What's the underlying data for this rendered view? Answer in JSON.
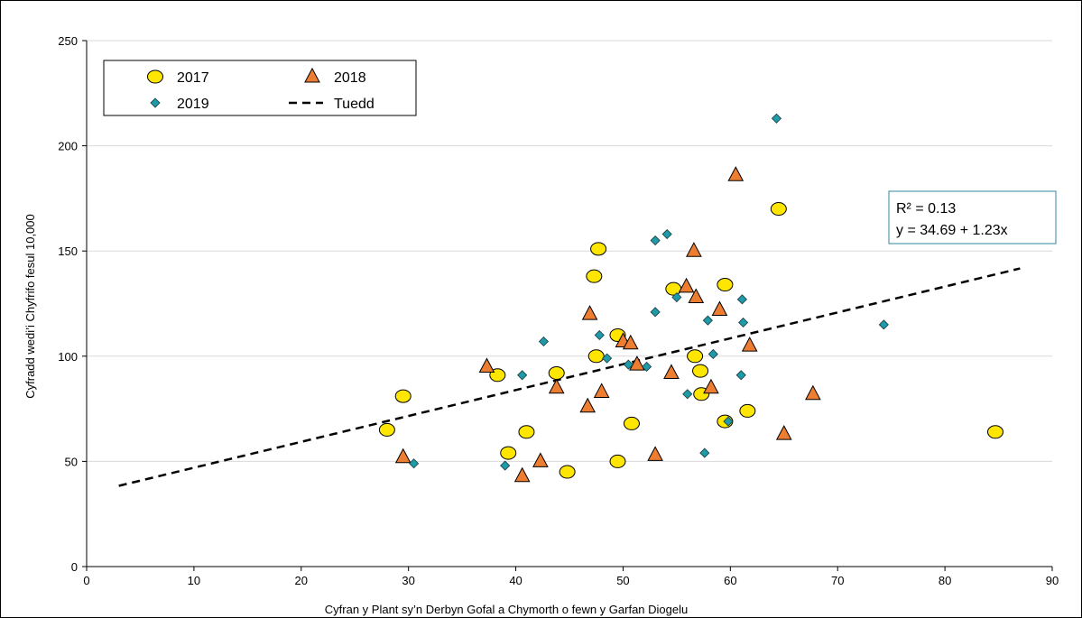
{
  "chart_data": {
    "type": "scatter",
    "xlabel": "Cyfran y Plant sy’n Derbyn Gofal a Chymorth o fewn y Garfan Diogelu",
    "ylabel": "Cyfradd wedi’i Chyfrifo fesul 10,000",
    "xlim": [
      0,
      90
    ],
    "ylim": [
      0,
      250
    ],
    "x_ticks": [
      "0",
      "10",
      "20",
      "30",
      "40",
      "50",
      "60",
      "70",
      "80",
      "90"
    ],
    "y_ticks": [
      "0",
      "50",
      "100",
      "150",
      "200",
      "250"
    ],
    "grid": "horizontal",
    "legend_position": "top-left",
    "series": [
      {
        "name": "2017",
        "marker": "circle",
        "color": "#ffe600",
        "points": [
          [
            28.0,
            65
          ],
          [
            29.5,
            81
          ],
          [
            38.3,
            91
          ],
          [
            39.3,
            54
          ],
          [
            41.0,
            64
          ],
          [
            43.8,
            92
          ],
          [
            44.8,
            45
          ],
          [
            47.3,
            138
          ],
          [
            47.5,
            100
          ],
          [
            47.7,
            151
          ],
          [
            49.5,
            110
          ],
          [
            49.5,
            50
          ],
          [
            50.8,
            68
          ],
          [
            54.7,
            132
          ],
          [
            56.7,
            100
          ],
          [
            57.2,
            93
          ],
          [
            57.3,
            82
          ],
          [
            59.5,
            134
          ],
          [
            59.5,
            69
          ],
          [
            61.6,
            74
          ],
          [
            64.5,
            170
          ],
          [
            84.7,
            64
          ]
        ]
      },
      {
        "name": "2018",
        "marker": "triangle",
        "color": "#ed7d31",
        "points": [
          [
            29.5,
            52
          ],
          [
            37.3,
            95
          ],
          [
            40.6,
            43
          ],
          [
            42.3,
            50
          ],
          [
            43.8,
            85
          ],
          [
            46.7,
            76
          ],
          [
            46.9,
            120
          ],
          [
            48.0,
            83
          ],
          [
            50.0,
            107
          ],
          [
            50.7,
            106
          ],
          [
            51.3,
            96
          ],
          [
            53.0,
            53
          ],
          [
            54.5,
            92
          ],
          [
            55.9,
            133
          ],
          [
            56.6,
            150
          ],
          [
            56.8,
            128
          ],
          [
            58.2,
            85
          ],
          [
            59.0,
            122
          ],
          [
            60.5,
            186
          ],
          [
            61.8,
            105
          ],
          [
            65.0,
            63
          ],
          [
            67.7,
            82
          ]
        ]
      },
      {
        "name": "2019",
        "marker": "diamond",
        "color": "#1f9aa8",
        "points": [
          [
            30.5,
            49
          ],
          [
            39.0,
            48
          ],
          [
            40.6,
            91
          ],
          [
            42.6,
            107
          ],
          [
            47.8,
            110
          ],
          [
            48.5,
            99
          ],
          [
            50.5,
            96
          ],
          [
            52.2,
            95
          ],
          [
            53.0,
            121
          ],
          [
            53.0,
            155
          ],
          [
            54.1,
            158
          ],
          [
            55.0,
            128
          ],
          [
            56.0,
            82
          ],
          [
            57.6,
            54
          ],
          [
            57.9,
            117
          ],
          [
            58.4,
            101
          ],
          [
            59.8,
            69
          ],
          [
            61.0,
            91
          ],
          [
            61.1,
            127
          ],
          [
            61.2,
            116
          ],
          [
            64.3,
            213
          ],
          [
            74.3,
            115
          ]
        ]
      }
    ],
    "trendline": {
      "name": "Tuedd",
      "style": "dashed",
      "intercept": 34.69,
      "slope": 1.23,
      "x_range": [
        3,
        87
      ]
    },
    "annotation": {
      "r2_text": "R² = 0.13",
      "equation_text": "y = 34.69 + 1.23x"
    }
  }
}
